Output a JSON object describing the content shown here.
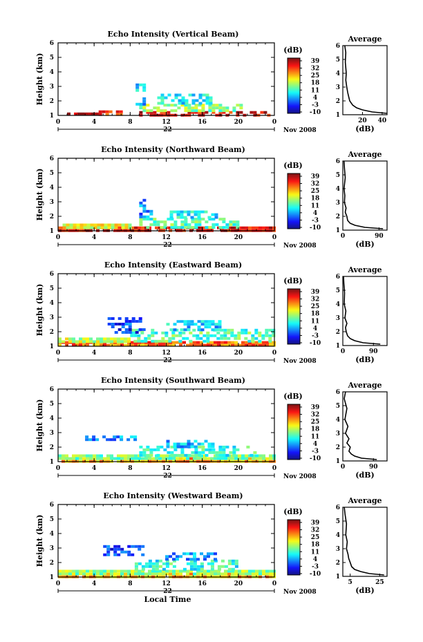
{
  "chart_data": [
    {
      "type": "heatmap",
      "title": "Echo Intensity (Vertical Beam)",
      "ylabel": "Height (km)",
      "date_marker": "22",
      "date_suffix": "Nov 2008",
      "xlim": [
        0,
        24
      ],
      "ylim": [
        1,
        6
      ],
      "xticks": [
        "0",
        "4",
        "8",
        "12",
        "16",
        "20",
        "0"
      ],
      "yticks": [
        "1",
        "2",
        "3",
        "4",
        "5",
        "6"
      ],
      "colorbar": {
        "unit": "(dB)",
        "ticks": [
          "39",
          "32",
          "25",
          "18",
          "11",
          "4",
          "-3",
          "-10"
        ]
      },
      "echo_blocks": [
        {
          "t0": 1.0,
          "t1": 4.5,
          "h0": 1.1,
          "h1": 1.2,
          "db": 39
        },
        {
          "t0": 4.5,
          "t1": 7.0,
          "h0": 1.1,
          "h1": 1.35,
          "db": 30
        },
        {
          "t0": 9.0,
          "t1": 23.5,
          "h0": 1.1,
          "h1": 1.3,
          "db": 34
        },
        {
          "t0": 9.0,
          "t1": 20.5,
          "h0": 1.3,
          "h1": 1.8,
          "db": 15
        },
        {
          "t0": 11.0,
          "t1": 17.0,
          "h0": 1.8,
          "h1": 2.5,
          "db": 8
        },
        {
          "t0": 8.6,
          "t1": 9.6,
          "h0": 1.8,
          "h1": 3.2,
          "db": 5
        }
      ],
      "average": {
        "title": "Average",
        "xlabel": "(dB)",
        "xticks": [
          "20",
          "40"
        ],
        "xlim": [
          0,
          45
        ],
        "yticks": [
          "1",
          "2",
          "3",
          "4",
          "5",
          "6"
        ],
        "ylim": [
          1,
          6
        ],
        "profile_db": [
          45,
          30,
          20,
          14,
          10,
          7,
          6,
          5,
          4,
          3,
          3.5,
          2.5,
          3,
          2
        ],
        "profile_h": [
          1.1,
          1.2,
          1.35,
          1.5,
          1.7,
          2.0,
          2.3,
          2.6,
          3.0,
          3.5,
          4.0,
          4.8,
          5.5,
          6.0
        ]
      }
    },
    {
      "type": "heatmap",
      "title": "Echo Intensity (Northward Beam)",
      "ylabel": "Height (km)",
      "date_marker": "22",
      "date_suffix": "Nov 2008",
      "xlim": [
        0,
        24
      ],
      "ylim": [
        1,
        6
      ],
      "xticks": [
        "0",
        "4",
        "8",
        "12",
        "16",
        "20",
        "0"
      ],
      "yticks": [
        "1",
        "2",
        "3",
        "4",
        "5",
        "6"
      ],
      "colorbar": {
        "unit": "(dB)",
        "ticks": [
          "39",
          "32",
          "25",
          "18",
          "11",
          "4",
          "-3",
          "-10"
        ]
      },
      "echo_blocks": [
        {
          "t0": 0.0,
          "t1": 24.0,
          "h0": 1.1,
          "h1": 1.3,
          "db": 34
        },
        {
          "t0": 0.5,
          "t1": 8.0,
          "h0": 1.3,
          "h1": 1.5,
          "db": 20
        },
        {
          "t0": 9.0,
          "t1": 20.0,
          "h0": 1.3,
          "h1": 1.9,
          "db": 12
        },
        {
          "t0": 12.0,
          "t1": 17.5,
          "h0": 1.9,
          "h1": 2.4,
          "db": 8
        },
        {
          "t0": 9.0,
          "t1": 10.5,
          "h0": 2.0,
          "h1": 3.2,
          "db": 2
        }
      ],
      "average": {
        "title": "Average",
        "xlabel": "(dB)",
        "xticks": [
          "0",
          "90"
        ],
        "xlim": [
          0,
          110
        ],
        "yticks": [
          "1",
          "2",
          "3",
          "4",
          "5",
          "6"
        ],
        "ylim": [
          1,
          6
        ],
        "profile_db": [
          100,
          55,
          30,
          18,
          12,
          10,
          6,
          8,
          4,
          5,
          3,
          6,
          4,
          3
        ],
        "profile_h": [
          1.1,
          1.2,
          1.35,
          1.5,
          1.7,
          2.0,
          2.3,
          2.6,
          3.0,
          3.5,
          4.0,
          4.8,
          5.5,
          6.0
        ]
      }
    },
    {
      "type": "heatmap",
      "title": "Echo Intensity (Eastward Beam)",
      "ylabel": "Height (km)",
      "date_marker": "22",
      "date_suffix": "Nov 2008",
      "xlim": [
        0,
        24
      ],
      "ylim": [
        1,
        6
      ],
      "xticks": [
        "0",
        "4",
        "8",
        "12",
        "16",
        "20",
        "0"
      ],
      "yticks": [
        "1",
        "2",
        "3",
        "4",
        "5",
        "6"
      ],
      "colorbar": {
        "unit": "(dB)",
        "ticks": [
          "39",
          "32",
          "25",
          "18",
          "11",
          "4",
          "-3",
          "-10"
        ]
      },
      "echo_blocks": [
        {
          "t0": 0.0,
          "t1": 24.0,
          "h0": 1.1,
          "h1": 1.35,
          "db": 28
        },
        {
          "t0": 0.0,
          "t1": 8.0,
          "h0": 1.35,
          "h1": 1.6,
          "db": 18
        },
        {
          "t0": 8.0,
          "t1": 24.0,
          "h0": 1.35,
          "h1": 2.2,
          "db": 12
        },
        {
          "t0": 5.5,
          "t1": 9.5,
          "h0": 2.0,
          "h1": 3.0,
          "db": -2
        },
        {
          "t0": 12.0,
          "t1": 18.0,
          "h0": 2.2,
          "h1": 2.8,
          "db": 6
        }
      ],
      "average": {
        "title": "Average",
        "xlabel": "(dB)",
        "xticks": [
          "0",
          "90"
        ],
        "xlim": [
          0,
          130
        ],
        "yticks": [
          "1",
          "2",
          "3",
          "4",
          "5",
          "6"
        ],
        "ylim": [
          1,
          6
        ],
        "profile_db": [
          110,
          60,
          35,
          22,
          14,
          10,
          8,
          12,
          6,
          9,
          4,
          5,
          3,
          2
        ],
        "profile_h": [
          1.1,
          1.2,
          1.35,
          1.5,
          1.7,
          2.0,
          2.3,
          2.6,
          3.0,
          3.5,
          4.0,
          4.8,
          5.5,
          6.0
        ]
      }
    },
    {
      "type": "heatmap",
      "title": "Echo Intensity (Southward Beam)",
      "ylabel": "Height (km)",
      "date_marker": "22",
      "date_suffix": "Nov 2008",
      "xlim": [
        0,
        24
      ],
      "ylim": [
        1,
        6
      ],
      "xticks": [
        "0",
        "4",
        "8",
        "12",
        "16",
        "20",
        "0"
      ],
      "yticks": [
        "1",
        "2",
        "3",
        "4",
        "5",
        "6"
      ],
      "colorbar": {
        "unit": "(dB)",
        "ticks": [
          "39",
          "32",
          "25",
          "18",
          "11",
          "4",
          "-3",
          "-10"
        ]
      },
      "echo_blocks": [
        {
          "t0": 0.0,
          "t1": 24.0,
          "h0": 1.1,
          "h1": 1.3,
          "db": 24
        },
        {
          "t0": 0.0,
          "t1": 24.0,
          "h0": 1.3,
          "h1": 1.5,
          "db": 14
        },
        {
          "t0": 9.0,
          "t1": 22.0,
          "h0": 1.5,
          "h1": 2.1,
          "db": 10
        },
        {
          "t0": 12.0,
          "t1": 17.0,
          "h0": 2.1,
          "h1": 2.5,
          "db": 5
        },
        {
          "t0": 3.0,
          "t1": 8.5,
          "h0": 2.5,
          "h1": 2.8,
          "db": 3
        }
      ],
      "average": {
        "title": "Average",
        "xlabel": "(dB)",
        "xticks": [
          "0",
          "90"
        ],
        "xlim": [
          0,
          130
        ],
        "yticks": [
          "1",
          "2",
          "3",
          "4",
          "5",
          "6"
        ],
        "ylim": [
          1,
          6
        ],
        "profile_db": [
          100,
          55,
          35,
          25,
          18,
          22,
          12,
          18,
          8,
          15,
          6,
          12,
          4,
          8
        ],
        "profile_h": [
          1.1,
          1.2,
          1.35,
          1.5,
          1.7,
          2.0,
          2.3,
          2.6,
          3.0,
          3.5,
          4.0,
          4.8,
          5.5,
          6.0
        ]
      }
    },
    {
      "type": "heatmap",
      "title": "Echo Intensity (Westward Beam)",
      "ylabel": "Height (km)",
      "xlabel": "Local Time",
      "date_marker": "22",
      "date_suffix": "Nov 2008",
      "xlim": [
        0,
        24
      ],
      "ylim": [
        1,
        6
      ],
      "xticks": [
        "0",
        "4",
        "8",
        "12",
        "16",
        "20",
        "0"
      ],
      "yticks": [
        "1",
        "2",
        "3",
        "4",
        "5",
        "6"
      ],
      "colorbar": {
        "unit": "(dB)",
        "ticks": [
          "39",
          "32",
          "25",
          "18",
          "11",
          "4",
          "-3",
          "-10"
        ]
      },
      "echo_blocks": [
        {
          "t0": 0.0,
          "t1": 24.0,
          "h0": 1.1,
          "h1": 1.3,
          "db": 24
        },
        {
          "t0": 0.0,
          "t1": 24.0,
          "h0": 1.3,
          "h1": 1.5,
          "db": 15
        },
        {
          "t0": 8.5,
          "t1": 20.0,
          "h0": 1.5,
          "h1": 2.2,
          "db": 10
        },
        {
          "t0": 11.5,
          "t1": 17.5,
          "h0": 2.2,
          "h1": 2.7,
          "db": 4
        },
        {
          "t0": 5.0,
          "t1": 9.5,
          "h0": 2.6,
          "h1": 3.2,
          "db": -2
        }
      ],
      "average": {
        "title": "Average",
        "xlabel": "(dB)",
        "xticks": [
          "5",
          "25"
        ],
        "xlim": [
          0,
          30
        ],
        "yticks": [
          "1",
          "2",
          "3",
          "4",
          "5",
          "6"
        ],
        "ylim": [
          1,
          6
        ],
        "profile_db": [
          28,
          18,
          12,
          8,
          6,
          5,
          4,
          3.5,
          2.5,
          3,
          2,
          2.5,
          1.5,
          1
        ],
        "profile_h": [
          1.1,
          1.2,
          1.35,
          1.5,
          1.7,
          2.0,
          2.3,
          2.6,
          3.0,
          3.5,
          4.0,
          4.8,
          5.5,
          6.0
        ]
      }
    }
  ]
}
